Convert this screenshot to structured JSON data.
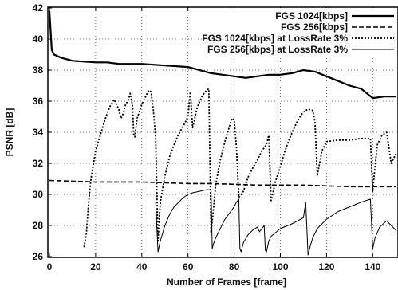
{
  "chart_data": {
    "type": "line",
    "xlabel": "Number of Frames [frame]",
    "ylabel": "PSNR [dB]",
    "xlim": [
      0,
      150
    ],
    "ylim": [
      26,
      42
    ],
    "xticks": [
      0,
      20,
      40,
      60,
      80,
      100,
      120,
      140
    ],
    "yticks": [
      26,
      28,
      30,
      32,
      34,
      36,
      38,
      40,
      42
    ],
    "grid": "dotted",
    "legend_position": "top-right",
    "series": [
      {
        "name": "FGS 1024[kbps]",
        "line_style": "solid-thick",
        "x": [
          0,
          1,
          2,
          5,
          10,
          15,
          20,
          25,
          30,
          40,
          50,
          60,
          70,
          75,
          80,
          85,
          90,
          95,
          100,
          105,
          110,
          115,
          120,
          125,
          130,
          135,
          140,
          145,
          150
        ],
        "y": [
          41.8,
          39.3,
          39.0,
          38.8,
          38.6,
          38.55,
          38.5,
          38.5,
          38.4,
          38.4,
          38.3,
          38.2,
          37.8,
          37.7,
          37.6,
          37.5,
          37.6,
          37.7,
          37.7,
          37.8,
          38.0,
          37.9,
          37.6,
          37.3,
          37.0,
          36.8,
          36.2,
          36.3,
          36.3
        ]
      },
      {
        "name": "FGS 256[kbps]",
        "line_style": "dashed",
        "x": [
          0,
          10,
          20,
          30,
          40,
          50,
          60,
          70,
          80,
          90,
          100,
          110,
          120,
          130,
          140,
          150
        ],
        "y": [
          30.9,
          30.85,
          30.8,
          30.8,
          30.8,
          30.75,
          30.7,
          30.7,
          30.65,
          30.6,
          30.6,
          30.6,
          30.55,
          30.5,
          30.5,
          30.5
        ]
      },
      {
        "name": "FGS 1024[kbps] at LossRate 3%",
        "line_style": "dotted",
        "x": [
          15,
          16,
          17,
          18,
          20,
          22,
          24,
          26,
          28,
          30,
          31,
          32,
          33,
          34,
          35,
          36,
          36.5,
          37,
          38,
          40,
          42,
          43,
          44,
          45,
          46,
          47,
          48,
          50,
          52,
          54,
          56,
          58,
          60,
          61,
          62,
          64,
          66,
          68,
          69,
          70,
          71,
          72,
          74,
          76,
          78,
          79,
          80,
          81,
          82,
          84,
          86,
          88,
          90,
          92,
          94,
          95,
          96,
          98,
          100,
          102,
          104,
          106,
          108,
          110,
          112,
          114,
          115,
          116,
          118,
          120,
          125,
          130,
          135,
          139,
          140,
          141,
          142,
          144,
          146,
          148,
          150
        ],
        "y": [
          26.6,
          27.5,
          29.5,
          31.0,
          32.8,
          33.8,
          34.8,
          35.6,
          36.1,
          35.5,
          34.9,
          35.2,
          35.8,
          36.0,
          36.5,
          35.7,
          33.8,
          33.7,
          34.9,
          35.8,
          36.4,
          36.7,
          36.6,
          35.4,
          33.6,
          27.0,
          29.5,
          31.2,
          32.4,
          33.2,
          33.9,
          34.4,
          35.0,
          36.6,
          34.3,
          35.6,
          36.3,
          36.7,
          36.8,
          27.5,
          29.0,
          30.6,
          32.2,
          33.4,
          34.4,
          34.9,
          34.8,
          33.0,
          29.8,
          30.2,
          31.1,
          31.7,
          32.2,
          32.8,
          33.2,
          33.8,
          29.6,
          30.9,
          31.8,
          32.8,
          33.6,
          34.3,
          34.9,
          35.3,
          35.5,
          35.4,
          34.7,
          31.2,
          32.8,
          33.4,
          33.5,
          33.5,
          33.6,
          33.6,
          30.2,
          31.8,
          33.2,
          33.8,
          34.0,
          32.0,
          32.6
        ]
      },
      {
        "name": "FGS  256[kbps] at LossRate 3%",
        "line_style": "solid-thin",
        "x": [
          46,
          47,
          48,
          50,
          52,
          54,
          56,
          58,
          60,
          62,
          65,
          68,
          70,
          70.5,
          71,
          72,
          74,
          76,
          78,
          80,
          81,
          82,
          82.5,
          83,
          84,
          86,
          88,
          90,
          91,
          92,
          93,
          93.5,
          94,
          95,
          96,
          100,
          105,
          110,
          111,
          112,
          113,
          114,
          116,
          120,
          125,
          130,
          135,
          139,
          140,
          141,
          143,
          146,
          148,
          150
        ],
        "y": [
          29.5,
          26.3,
          27.0,
          28.0,
          28.7,
          29.2,
          29.5,
          29.8,
          30.0,
          30.1,
          30.2,
          30.3,
          30.3,
          26.5,
          26.8,
          27.2,
          27.8,
          28.4,
          28.8,
          29.2,
          29.5,
          29.7,
          26.5,
          26.3,
          26.9,
          27.4,
          27.7,
          27.9,
          27.6,
          27.8,
          28.0,
          26.4,
          26.3,
          27.0,
          27.3,
          27.8,
          28.1,
          28.5,
          29.5,
          26.1,
          26.7,
          27.2,
          27.8,
          28.4,
          28.9,
          29.2,
          29.5,
          29.7,
          26.5,
          27.2,
          27.9,
          28.3,
          28.0,
          27.7
        ]
      }
    ]
  }
}
